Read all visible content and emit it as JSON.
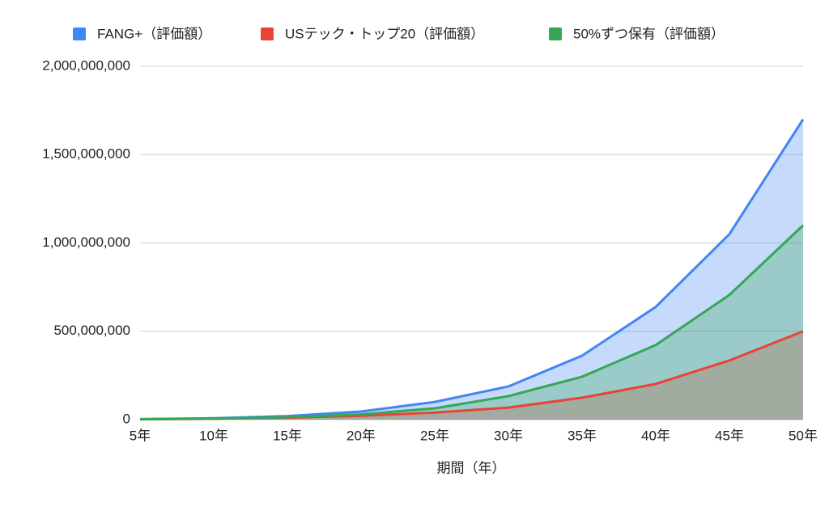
{
  "chart_data": {
    "type": "area",
    "x_label": "期間（年）",
    "categories": [
      "5年",
      "10年",
      "15年",
      "20年",
      "25年",
      "30年",
      "35年",
      "40年",
      "45年",
      "50年"
    ],
    "series": [
      {
        "name": "FANG+（評価額）",
        "color": "#4285f4",
        "values": [
          3000000,
          8000000,
          20000000,
          46000000,
          100000000,
          188000000,
          362000000,
          638000000,
          1050000000,
          1700000000
        ]
      },
      {
        "name": "USテック・トップ20（評価額）",
        "color": "#ea4335",
        "values": [
          2000000,
          5000000,
          11000000,
          22000000,
          40000000,
          68000000,
          124000000,
          202000000,
          335000000,
          500000000
        ]
      },
      {
        "name": "50%ずつ保有（評価額）",
        "color": "#34a853",
        "values": [
          2500000,
          6000000,
          14000000,
          30000000,
          64000000,
          133000000,
          243000000,
          422000000,
          706000000,
          1100000000
        ]
      }
    ],
    "ylim": [
      0,
      2000000000
    ],
    "yticks": [
      0,
      {
        "value": 500000000,
        "label": "500,000,000"
      },
      {
        "value": 1000000000,
        "label": "1,000,000,000"
      },
      {
        "value": 1500000000,
        "label": "1,500,000,000"
      },
      {
        "value": 2000000000,
        "label": "2,000,000,000"
      }
    ],
    "grid": true
  }
}
